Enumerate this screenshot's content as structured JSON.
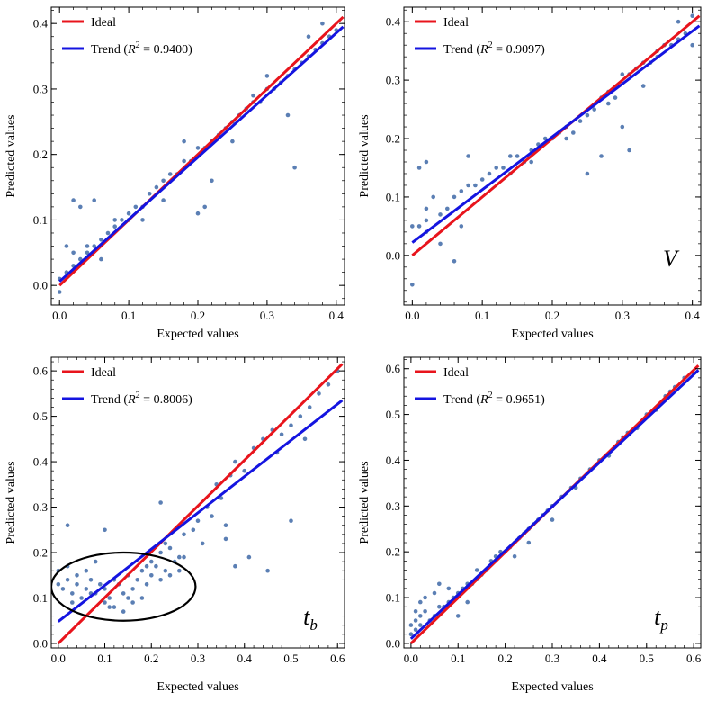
{
  "colors": {
    "ideal": "#e8141c",
    "trend": "#1414e0",
    "points": "#5b7fb4",
    "frame": "#000000",
    "circle": "#000000"
  },
  "chart_data": [
    {
      "type": "scatter",
      "tag": "",
      "tag_sub": "",
      "xlabel": "Expected values",
      "ylabel": "Predicted  values",
      "xlim": [
        -0.012,
        0.412
      ],
      "ylim": [
        -0.03,
        0.425
      ],
      "xticks": [
        0.0,
        0.1,
        0.2,
        0.3,
        0.4
      ],
      "xtick_labels": [
        "0.0",
        "0.1",
        "0.2",
        "0.3",
        "0.4"
      ],
      "yticks": [
        0.0,
        0.1,
        0.2,
        0.3,
        0.4
      ],
      "ytick_labels": [
        "0.0",
        "0.1",
        "0.2",
        "0.3",
        "0.4"
      ],
      "legend": {
        "ideal": "Ideal",
        "trend_prefix": "Trend (",
        "trend_r": "R",
        "trend_sup": "2",
        "trend_value": " = 0.9400)"
      },
      "r2": 0.94,
      "series": [
        {
          "name": "Ideal",
          "kind": "line",
          "x": [
            0.0,
            0.41
          ],
          "y": [
            0.0,
            0.41
          ]
        },
        {
          "name": "Trend",
          "kind": "line",
          "x": [
            0.0,
            0.41
          ],
          "y": [
            0.006,
            0.395
          ]
        },
        {
          "kind": "scatter",
          "x": [
            0.0,
            0.01,
            0.02,
            0.02,
            0.03,
            0.04,
            0.04,
            0.05,
            0.06,
            0.07,
            0.08,
            0.09,
            0.1,
            0.1,
            0.11,
            0.12,
            0.13,
            0.14,
            0.15,
            0.16,
            0.17,
            0.18,
            0.19,
            0.2,
            0.21,
            0.22,
            0.23,
            0.24,
            0.25,
            0.26,
            0.27,
            0.28,
            0.29,
            0.3,
            0.31,
            0.32,
            0.33,
            0.34,
            0.35,
            0.36,
            0.37,
            0.38,
            0.39,
            0.4,
            0.02,
            0.03,
            0.05,
            0.2,
            0.21,
            0.22,
            0.34,
            0.33,
            0.18,
            0.0,
            0.01,
            0.06,
            0.08,
            0.12,
            0.15,
            0.25,
            0.28,
            0.3,
            0.36,
            0.38
          ],
          "y": [
            0.01,
            0.02,
            0.03,
            0.05,
            0.04,
            0.06,
            0.05,
            0.06,
            0.07,
            0.08,
            0.09,
            0.1,
            0.1,
            0.11,
            0.12,
            0.12,
            0.14,
            0.15,
            0.16,
            0.17,
            0.17,
            0.19,
            0.19,
            0.21,
            0.21,
            0.22,
            0.23,
            0.24,
            0.25,
            0.26,
            0.27,
            0.28,
            0.28,
            0.3,
            0.3,
            0.31,
            0.32,
            0.33,
            0.34,
            0.35,
            0.36,
            0.37,
            0.38,
            0.39,
            0.13,
            0.12,
            0.13,
            0.11,
            0.12,
            0.16,
            0.18,
            0.26,
            0.22,
            -0.01,
            0.06,
            0.04,
            0.1,
            0.1,
            0.13,
            0.22,
            0.29,
            0.32,
            0.38,
            0.4
          ]
        }
      ]
    },
    {
      "type": "scatter",
      "tag": "V",
      "tag_sub": "",
      "xlabel": "Expected values",
      "ylabel": "Predicted  values",
      "xlim": [
        -0.012,
        0.412
      ],
      "ylim": [
        -0.085,
        0.425
      ],
      "xticks": [
        0.0,
        0.1,
        0.2,
        0.3,
        0.4
      ],
      "xtick_labels": [
        "0.0",
        "0.1",
        "0.2",
        "0.3",
        "0.4"
      ],
      "yticks": [
        0.0,
        0.1,
        0.2,
        0.3,
        0.4
      ],
      "ytick_labels": [
        "0.0",
        "0.1",
        "0.2",
        "0.3",
        "0.4"
      ],
      "legend": {
        "ideal": "Ideal",
        "trend_prefix": "Trend (",
        "trend_r": "R",
        "trend_sup": "2",
        "trend_value": " = 0.9097)"
      },
      "r2": 0.9097,
      "series": [
        {
          "name": "Ideal",
          "kind": "line",
          "x": [
            0.0,
            0.41
          ],
          "y": [
            0.0,
            0.41
          ]
        },
        {
          "name": "Trend",
          "kind": "line",
          "x": [
            0.0,
            0.41
          ],
          "y": [
            0.022,
            0.393
          ]
        },
        {
          "kind": "scatter",
          "x": [
            0.0,
            0.01,
            0.02,
            0.02,
            0.03,
            0.04,
            0.05,
            0.06,
            0.07,
            0.08,
            0.09,
            0.1,
            0.11,
            0.12,
            0.13,
            0.14,
            0.15,
            0.16,
            0.17,
            0.18,
            0.19,
            0.2,
            0.21,
            0.22,
            0.23,
            0.24,
            0.25,
            0.26,
            0.27,
            0.28,
            0.29,
            0.3,
            0.31,
            0.32,
            0.33,
            0.34,
            0.35,
            0.36,
            0.37,
            0.38,
            0.39,
            0.4,
            0.01,
            0.02,
            0.04,
            0.06,
            0.08,
            0.25,
            0.27,
            0.3,
            0.31,
            0.35,
            0.0,
            0.02,
            0.07,
            0.14,
            0.17,
            0.22,
            0.28,
            0.33,
            0.38,
            0.4
          ],
          "y": [
            0.05,
            0.05,
            0.06,
            0.08,
            0.1,
            0.07,
            0.08,
            0.1,
            0.11,
            0.12,
            0.12,
            0.13,
            0.14,
            0.15,
            0.15,
            0.17,
            0.17,
            0.16,
            0.18,
            0.19,
            0.2,
            0.2,
            0.21,
            0.2,
            0.21,
            0.23,
            0.24,
            0.25,
            0.27,
            0.28,
            0.27,
            0.31,
            0.31,
            0.32,
            0.33,
            0.33,
            0.35,
            0.36,
            0.36,
            0.37,
            0.38,
            0.36,
            0.15,
            0.16,
            0.02,
            -0.01,
            0.17,
            0.14,
            0.17,
            0.22,
            0.18,
            0.34,
            -0.05,
            0.04,
            0.05,
            0.14,
            0.16,
            0.22,
            0.26,
            0.29,
            0.4,
            0.41
          ]
        }
      ]
    },
    {
      "type": "scatter",
      "tag": "t",
      "tag_sub": "b",
      "xlabel": "Expected values",
      "ylabel": "Predicted  values",
      "xlim": [
        -0.015,
        0.615
      ],
      "ylim": [
        -0.01,
        0.63
      ],
      "xticks": [
        0.0,
        0.1,
        0.2,
        0.3,
        0.4,
        0.5,
        0.6
      ],
      "xtick_labels": [
        "0.0",
        "0.1",
        "0.2",
        "0.3",
        "0.4",
        "0.5",
        "0.6"
      ],
      "yticks": [
        0.0,
        0.1,
        0.2,
        0.3,
        0.4,
        0.5,
        0.6
      ],
      "ytick_labels": [
        "0.0",
        "0.1",
        "0.2",
        "0.3",
        "0.4",
        "0.5",
        "0.6"
      ],
      "legend": {
        "ideal": "Ideal",
        "trend_prefix": "Trend (",
        "trend_r": "R",
        "trend_sup": "2",
        "trend_value": " = 0.8006)"
      },
      "r2": 0.8006,
      "ellipse": {
        "cx": 0.14,
        "cy": 0.125,
        "rx": 0.155,
        "ry": 0.075
      },
      "series": [
        {
          "name": "Ideal",
          "kind": "line",
          "x": [
            0.0,
            0.61
          ],
          "y": [
            0.0,
            0.615
          ]
        },
        {
          "name": "Trend",
          "kind": "line",
          "x": [
            0.0,
            0.61
          ],
          "y": [
            0.048,
            0.535
          ]
        },
        {
          "kind": "scatter",
          "x": [
            0.0,
            0.01,
            0.02,
            0.03,
            0.04,
            0.05,
            0.06,
            0.07,
            0.08,
            0.09,
            0.1,
            0.11,
            0.12,
            0.13,
            0.14,
            0.15,
            0.16,
            0.17,
            0.18,
            0.19,
            0.2,
            0.21,
            0.22,
            0.23,
            0.24,
            0.25,
            0.26,
            0.27,
            0.0,
            0.02,
            0.04,
            0.06,
            0.08,
            0.1,
            0.12,
            0.14,
            0.16,
            0.18,
            0.2,
            0.22,
            0.24,
            0.26,
            0.03,
            0.07,
            0.11,
            0.15,
            0.19,
            0.23,
            0.29,
            0.3,
            0.31,
            0.32,
            0.33,
            0.34,
            0.35,
            0.36,
            0.37,
            0.38,
            0.4,
            0.42,
            0.44,
            0.46,
            0.48,
            0.5,
            0.52,
            0.54,
            0.56,
            0.58,
            0.6,
            0.38,
            0.41,
            0.45,
            0.5,
            0.53,
            0.36,
            0.47,
            0.02,
            0.1,
            0.22,
            0.27
          ],
          "y": [
            0.13,
            0.12,
            0.14,
            0.11,
            0.13,
            0.1,
            0.12,
            0.14,
            0.11,
            0.13,
            0.12,
            0.1,
            0.14,
            0.13,
            0.11,
            0.15,
            0.12,
            0.14,
            0.16,
            0.13,
            0.15,
            0.17,
            0.14,
            0.16,
            0.15,
            0.18,
            0.16,
            0.19,
            0.16,
            0.17,
            0.15,
            0.16,
            0.18,
            0.09,
            0.08,
            0.07,
            0.09,
            0.1,
            0.18,
            0.2,
            0.21,
            0.19,
            0.09,
            0.11,
            0.08,
            0.1,
            0.17,
            0.22,
            0.25,
            0.27,
            0.22,
            0.3,
            0.28,
            0.35,
            0.32,
            0.26,
            0.37,
            0.4,
            0.38,
            0.43,
            0.45,
            0.47,
            0.46,
            0.48,
            0.5,
            0.52,
            0.55,
            0.57,
            0.6,
            0.17,
            0.19,
            0.16,
            0.27,
            0.45,
            0.23,
            0.42,
            0.26,
            0.25,
            0.31,
            0.24
          ]
        }
      ]
    },
    {
      "type": "scatter",
      "tag": "t",
      "tag_sub": "p",
      "xlabel": "Expected values",
      "ylabel": "Predicted  values",
      "xlim": [
        -0.015,
        0.615
      ],
      "ylim": [
        -0.01,
        0.625
      ],
      "xticks": [
        0.0,
        0.1,
        0.2,
        0.3,
        0.4,
        0.5,
        0.6
      ],
      "xtick_labels": [
        "0.0",
        "0.1",
        "0.2",
        "0.3",
        "0.4",
        "0.5",
        "0.6"
      ],
      "yticks": [
        0.0,
        0.1,
        0.2,
        0.3,
        0.4,
        0.5,
        0.6
      ],
      "ytick_labels": [
        "0.0",
        "0.1",
        "0.2",
        "0.3",
        "0.4",
        "0.5",
        "0.6"
      ],
      "legend": {
        "ideal": "Ideal",
        "trend_prefix": "Trend (",
        "trend_r": "R",
        "trend_sup": "2",
        "trend_value": " = 0.9651)"
      },
      "r2": 0.9651,
      "series": [
        {
          "name": "Ideal",
          "kind": "line",
          "x": [
            0.0,
            0.61
          ],
          "y": [
            0.0,
            0.607
          ]
        },
        {
          "name": "Trend",
          "kind": "line",
          "x": [
            0.0,
            0.61
          ],
          "y": [
            0.01,
            0.597
          ]
        },
        {
          "kind": "scatter",
          "x": [
            0.0,
            0.01,
            0.01,
            0.02,
            0.02,
            0.03,
            0.04,
            0.05,
            0.06,
            0.07,
            0.08,
            0.09,
            0.1,
            0.11,
            0.12,
            0.13,
            0.14,
            0.15,
            0.16,
            0.17,
            0.18,
            0.19,
            0.2,
            0.21,
            0.22,
            0.23,
            0.24,
            0.25,
            0.26,
            0.27,
            0.28,
            0.29,
            0.3,
            0.32,
            0.34,
            0.36,
            0.38,
            0.4,
            0.42,
            0.44,
            0.46,
            0.48,
            0.5,
            0.52,
            0.54,
            0.56,
            0.58,
            0.6,
            0.0,
            0.01,
            0.02,
            0.03,
            0.05,
            0.06,
            0.08,
            0.1,
            0.12,
            0.14,
            0.22,
            0.25,
            0.3,
            0.35,
            0.45,
            0.55
          ],
          "y": [
            0.04,
            0.05,
            0.03,
            0.06,
            0.04,
            0.07,
            0.05,
            0.06,
            0.08,
            0.08,
            0.09,
            0.1,
            0.11,
            0.12,
            0.13,
            0.13,
            0.14,
            0.15,
            0.16,
            0.18,
            0.19,
            0.2,
            0.2,
            0.21,
            0.22,
            0.23,
            0.24,
            0.25,
            0.26,
            0.27,
            0.28,
            0.29,
            0.3,
            0.32,
            0.34,
            0.36,
            0.38,
            0.4,
            0.41,
            0.44,
            0.46,
            0.47,
            0.5,
            0.51,
            0.54,
            0.56,
            0.58,
            0.59,
            0.02,
            0.07,
            0.09,
            0.1,
            0.11,
            0.13,
            0.12,
            0.06,
            0.09,
            0.16,
            0.19,
            0.22,
            0.27,
            0.34,
            0.45,
            0.55
          ]
        }
      ]
    }
  ]
}
